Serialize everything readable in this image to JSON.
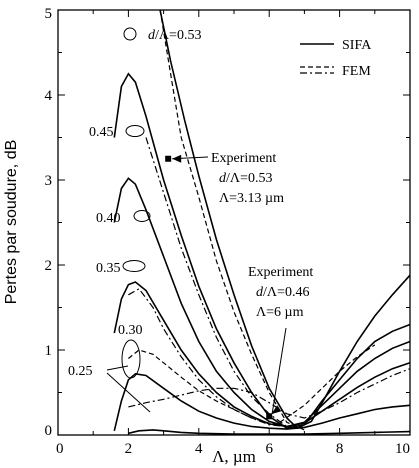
{
  "chart_data": {
    "type": "line",
    "xlabel": "Λ, µm",
    "ylabel": "Pertes par soudure, dB",
    "xlim": [
      0,
      10
    ],
    "ylim": [
      0,
      5
    ],
    "xticks": [
      "0",
      "2",
      "4",
      "6",
      "8",
      "10"
    ],
    "yticks": [
      "0",
      "1",
      "2",
      "3",
      "4",
      "5"
    ],
    "grid": false,
    "legend": {
      "placement": "top-right",
      "entries": [
        {
          "label": "SIFA",
          "style": "solid"
        },
        {
          "label": "FEM",
          "style": "dashed"
        }
      ]
    },
    "series": [
      {
        "label": "d/Λ=0.53",
        "method": "SIFA",
        "style": "solid",
        "points": [
          [
            2.9,
            5.0
          ],
          [
            3.2,
            4.4
          ],
          [
            3.6,
            3.7
          ],
          [
            4.0,
            3.05
          ],
          [
            4.5,
            2.3
          ],
          [
            5.0,
            1.65
          ],
          [
            5.5,
            1.05
          ],
          [
            6.0,
            0.55
          ],
          [
            6.5,
            0.2
          ],
          [
            6.8,
            0.08
          ],
          [
            7.2,
            0.16
          ],
          [
            7.6,
            0.45
          ],
          [
            8.0,
            0.75
          ],
          [
            8.5,
            1.1
          ],
          [
            9.0,
            1.4
          ],
          [
            9.5,
            1.65
          ],
          [
            10.0,
            1.88
          ]
        ]
      },
      {
        "label": "d/Λ=0.53",
        "method": "FEM",
        "style": "dashed",
        "points": [
          [
            2.9,
            5.0
          ],
          [
            3.2,
            4.25
          ],
          [
            3.5,
            3.5
          ],
          [
            4.0,
            2.8
          ],
          [
            4.5,
            2.05
          ],
          [
            5.0,
            1.45
          ],
          [
            5.5,
            0.95
          ],
          [
            6.0,
            0.5
          ],
          [
            6.5,
            0.15
          ],
          [
            7.0,
            0.06
          ]
        ]
      },
      {
        "label": "d/Λ=0.45",
        "method": "SIFA",
        "style": "solid",
        "points": [
          [
            1.6,
            3.5
          ],
          [
            1.8,
            4.1
          ],
          [
            2.0,
            4.25
          ],
          [
            2.2,
            4.15
          ],
          [
            2.5,
            3.75
          ],
          [
            3.0,
            3.0
          ],
          [
            3.5,
            2.35
          ],
          [
            4.0,
            1.75
          ],
          [
            4.5,
            1.25
          ],
          [
            5.0,
            0.85
          ],
          [
            5.5,
            0.5
          ],
          [
            6.0,
            0.22
          ],
          [
            6.5,
            0.08
          ],
          [
            7.0,
            0.12
          ],
          [
            7.5,
            0.4
          ],
          [
            8.0,
            0.65
          ],
          [
            8.5,
            0.9
          ],
          [
            9.0,
            1.1
          ],
          [
            9.5,
            1.22
          ],
          [
            10.0,
            1.3
          ]
        ]
      },
      {
        "label": "d/Λ=0.45",
        "method": "FEM",
        "style": "dash-dot",
        "points": [
          [
            2.5,
            3.5
          ],
          [
            3.0,
            2.85
          ],
          [
            3.5,
            2.2
          ],
          [
            4.0,
            1.65
          ],
          [
            4.5,
            1.15
          ],
          [
            5.0,
            0.75
          ],
          [
            5.5,
            0.45
          ],
          [
            6.0,
            0.25
          ],
          [
            6.5,
            0.1
          ],
          [
            7.0,
            0.08
          ]
        ]
      },
      {
        "label": "d/Λ=0.40",
        "method": "SIFA",
        "style": "solid",
        "points": [
          [
            1.6,
            2.5
          ],
          [
            1.8,
            2.9
          ],
          [
            2.0,
            3.02
          ],
          [
            2.2,
            2.95
          ],
          [
            2.5,
            2.65
          ],
          [
            3.0,
            2.1
          ],
          [
            3.5,
            1.55
          ],
          [
            4.0,
            1.1
          ],
          [
            4.5,
            0.75
          ],
          [
            5.0,
            0.5
          ],
          [
            5.5,
            0.3
          ],
          [
            6.0,
            0.16
          ],
          [
            6.5,
            0.1
          ],
          [
            7.0,
            0.15
          ],
          [
            7.5,
            0.35
          ],
          [
            8.0,
            0.55
          ],
          [
            8.5,
            0.75
          ],
          [
            9.0,
            0.9
          ],
          [
            9.5,
            1.02
          ],
          [
            10.0,
            1.1
          ]
        ]
      },
      {
        "label": "d/Λ=0.35",
        "method": "SIFA",
        "style": "solid",
        "points": [
          [
            1.6,
            1.2
          ],
          [
            1.8,
            1.6
          ],
          [
            2.0,
            1.77
          ],
          [
            2.2,
            1.8
          ],
          [
            2.5,
            1.7
          ],
          [
            3.0,
            1.35
          ],
          [
            3.5,
            1.0
          ],
          [
            4.0,
            0.72
          ],
          [
            4.5,
            0.5
          ],
          [
            5.0,
            0.33
          ],
          [
            5.5,
            0.22
          ],
          [
            6.0,
            0.13
          ],
          [
            6.5,
            0.1
          ],
          [
            7.0,
            0.14
          ],
          [
            7.5,
            0.28
          ],
          [
            8.0,
            0.42
          ],
          [
            8.5,
            0.56
          ],
          [
            9.0,
            0.68
          ],
          [
            9.5,
            0.78
          ],
          [
            10.0,
            0.85
          ]
        ]
      },
      {
        "label": "d/Λ=0.35",
        "method": "FEM",
        "style": "dash-dot",
        "points": [
          [
            2.0,
            1.65
          ],
          [
            2.3,
            1.72
          ],
          [
            2.7,
            1.5
          ],
          [
            3.0,
            1.25
          ],
          [
            3.5,
            0.92
          ],
          [
            4.0,
            0.65
          ],
          [
            4.5,
            0.45
          ],
          [
            5.0,
            0.3
          ],
          [
            5.5,
            0.2
          ],
          [
            6.0,
            0.12
          ],
          [
            6.5,
            0.1
          ]
        ]
      },
      {
        "label": "d/Λ=0.30",
        "method": "SIFA",
        "style": "solid",
        "points": [
          [
            1.6,
            0.05
          ],
          [
            1.8,
            0.4
          ],
          [
            2.0,
            0.65
          ],
          [
            2.2,
            0.72
          ],
          [
            2.5,
            0.7
          ],
          [
            3.0,
            0.55
          ],
          [
            3.5,
            0.4
          ],
          [
            4.0,
            0.28
          ],
          [
            4.5,
            0.2
          ],
          [
            5.0,
            0.14
          ],
          [
            5.5,
            0.1
          ],
          [
            6.0,
            0.08
          ],
          [
            6.5,
            0.07
          ],
          [
            7.0,
            0.09
          ],
          [
            7.5,
            0.14
          ],
          [
            8.0,
            0.2
          ],
          [
            8.5,
            0.25
          ],
          [
            9.0,
            0.3
          ],
          [
            9.5,
            0.33
          ],
          [
            10.0,
            0.35
          ]
        ]
      },
      {
        "label": "d/Λ=0.30",
        "method": "FEM",
        "style": "dashed",
        "points": [
          [
            2.0,
            0.9
          ],
          [
            2.3,
            1.0
          ],
          [
            2.7,
            0.95
          ],
          [
            3.0,
            0.85
          ],
          [
            3.5,
            0.68
          ],
          [
            4.0,
            0.52
          ],
          [
            4.5,
            0.4
          ],
          [
            5.0,
            0.3
          ],
          [
            5.5,
            0.2
          ],
          [
            6.0,
            0.14
          ],
          [
            6.5,
            0.1
          ]
        ]
      },
      {
        "label": "d/Λ=0.25",
        "method": "SIFA",
        "style": "solid",
        "points": [
          [
            2.0,
            0.02
          ],
          [
            2.3,
            0.05
          ],
          [
            2.7,
            0.06
          ],
          [
            3.0,
            0.05
          ],
          [
            3.5,
            0.03
          ],
          [
            4.0,
            0.02
          ],
          [
            5.0,
            0.01
          ],
          [
            6.0,
            0.01
          ],
          [
            7.0,
            0.01
          ],
          [
            8.0,
            0.02
          ],
          [
            9.0,
            0.03
          ],
          [
            10.0,
            0.04
          ]
        ]
      },
      {
        "label": "d/Λ=0.25",
        "method": "FEM",
        "style": "dash-dot",
        "points": [
          [
            2.0,
            0.33
          ],
          [
            2.5,
            0.38
          ],
          [
            3.0,
            0.42
          ],
          [
            3.5,
            0.47
          ],
          [
            4.0,
            0.52
          ],
          [
            4.5,
            0.55
          ],
          [
            5.0,
            0.55
          ],
          [
            5.5,
            0.5
          ],
          [
            6.0,
            0.38
          ],
          [
            6.5,
            0.25
          ],
          [
            7.0,
            0.2
          ],
          [
            7.5,
            0.28
          ],
          [
            8.0,
            0.38
          ],
          [
            8.5,
            0.5
          ],
          [
            9.0,
            0.6
          ],
          [
            9.5,
            0.7
          ],
          [
            10.0,
            0.78
          ]
        ]
      },
      {
        "label": "d/Λ=0.46",
        "method": "FEM",
        "style": "dashed",
        "points": [
          [
            6.3,
            0.15
          ],
          [
            7.0,
            0.35
          ],
          [
            7.5,
            0.55
          ],
          [
            8.0,
            0.75
          ],
          [
            8.5,
            0.92
          ],
          [
            9.0,
            1.06
          ]
        ]
      }
    ],
    "annotations": [
      {
        "text": "d/Λ=0.53"
      },
      {
        "text": "0.45"
      },
      {
        "text": "0.40"
      },
      {
        "text": "0.35"
      },
      {
        "text": "0.30"
      },
      {
        "text": "0.25"
      }
    ],
    "experiments": [
      {
        "lines": [
          "Experiment",
          "d/Λ=0.53",
          "Λ=3.13 µm"
        ],
        "point": [
          3.13,
          3.25
        ]
      },
      {
        "lines": [
          "Experiment",
          "d/Λ=0.46",
          "Λ=6 µm"
        ],
        "point": [
          6.0,
          0.22
        ]
      }
    ]
  }
}
